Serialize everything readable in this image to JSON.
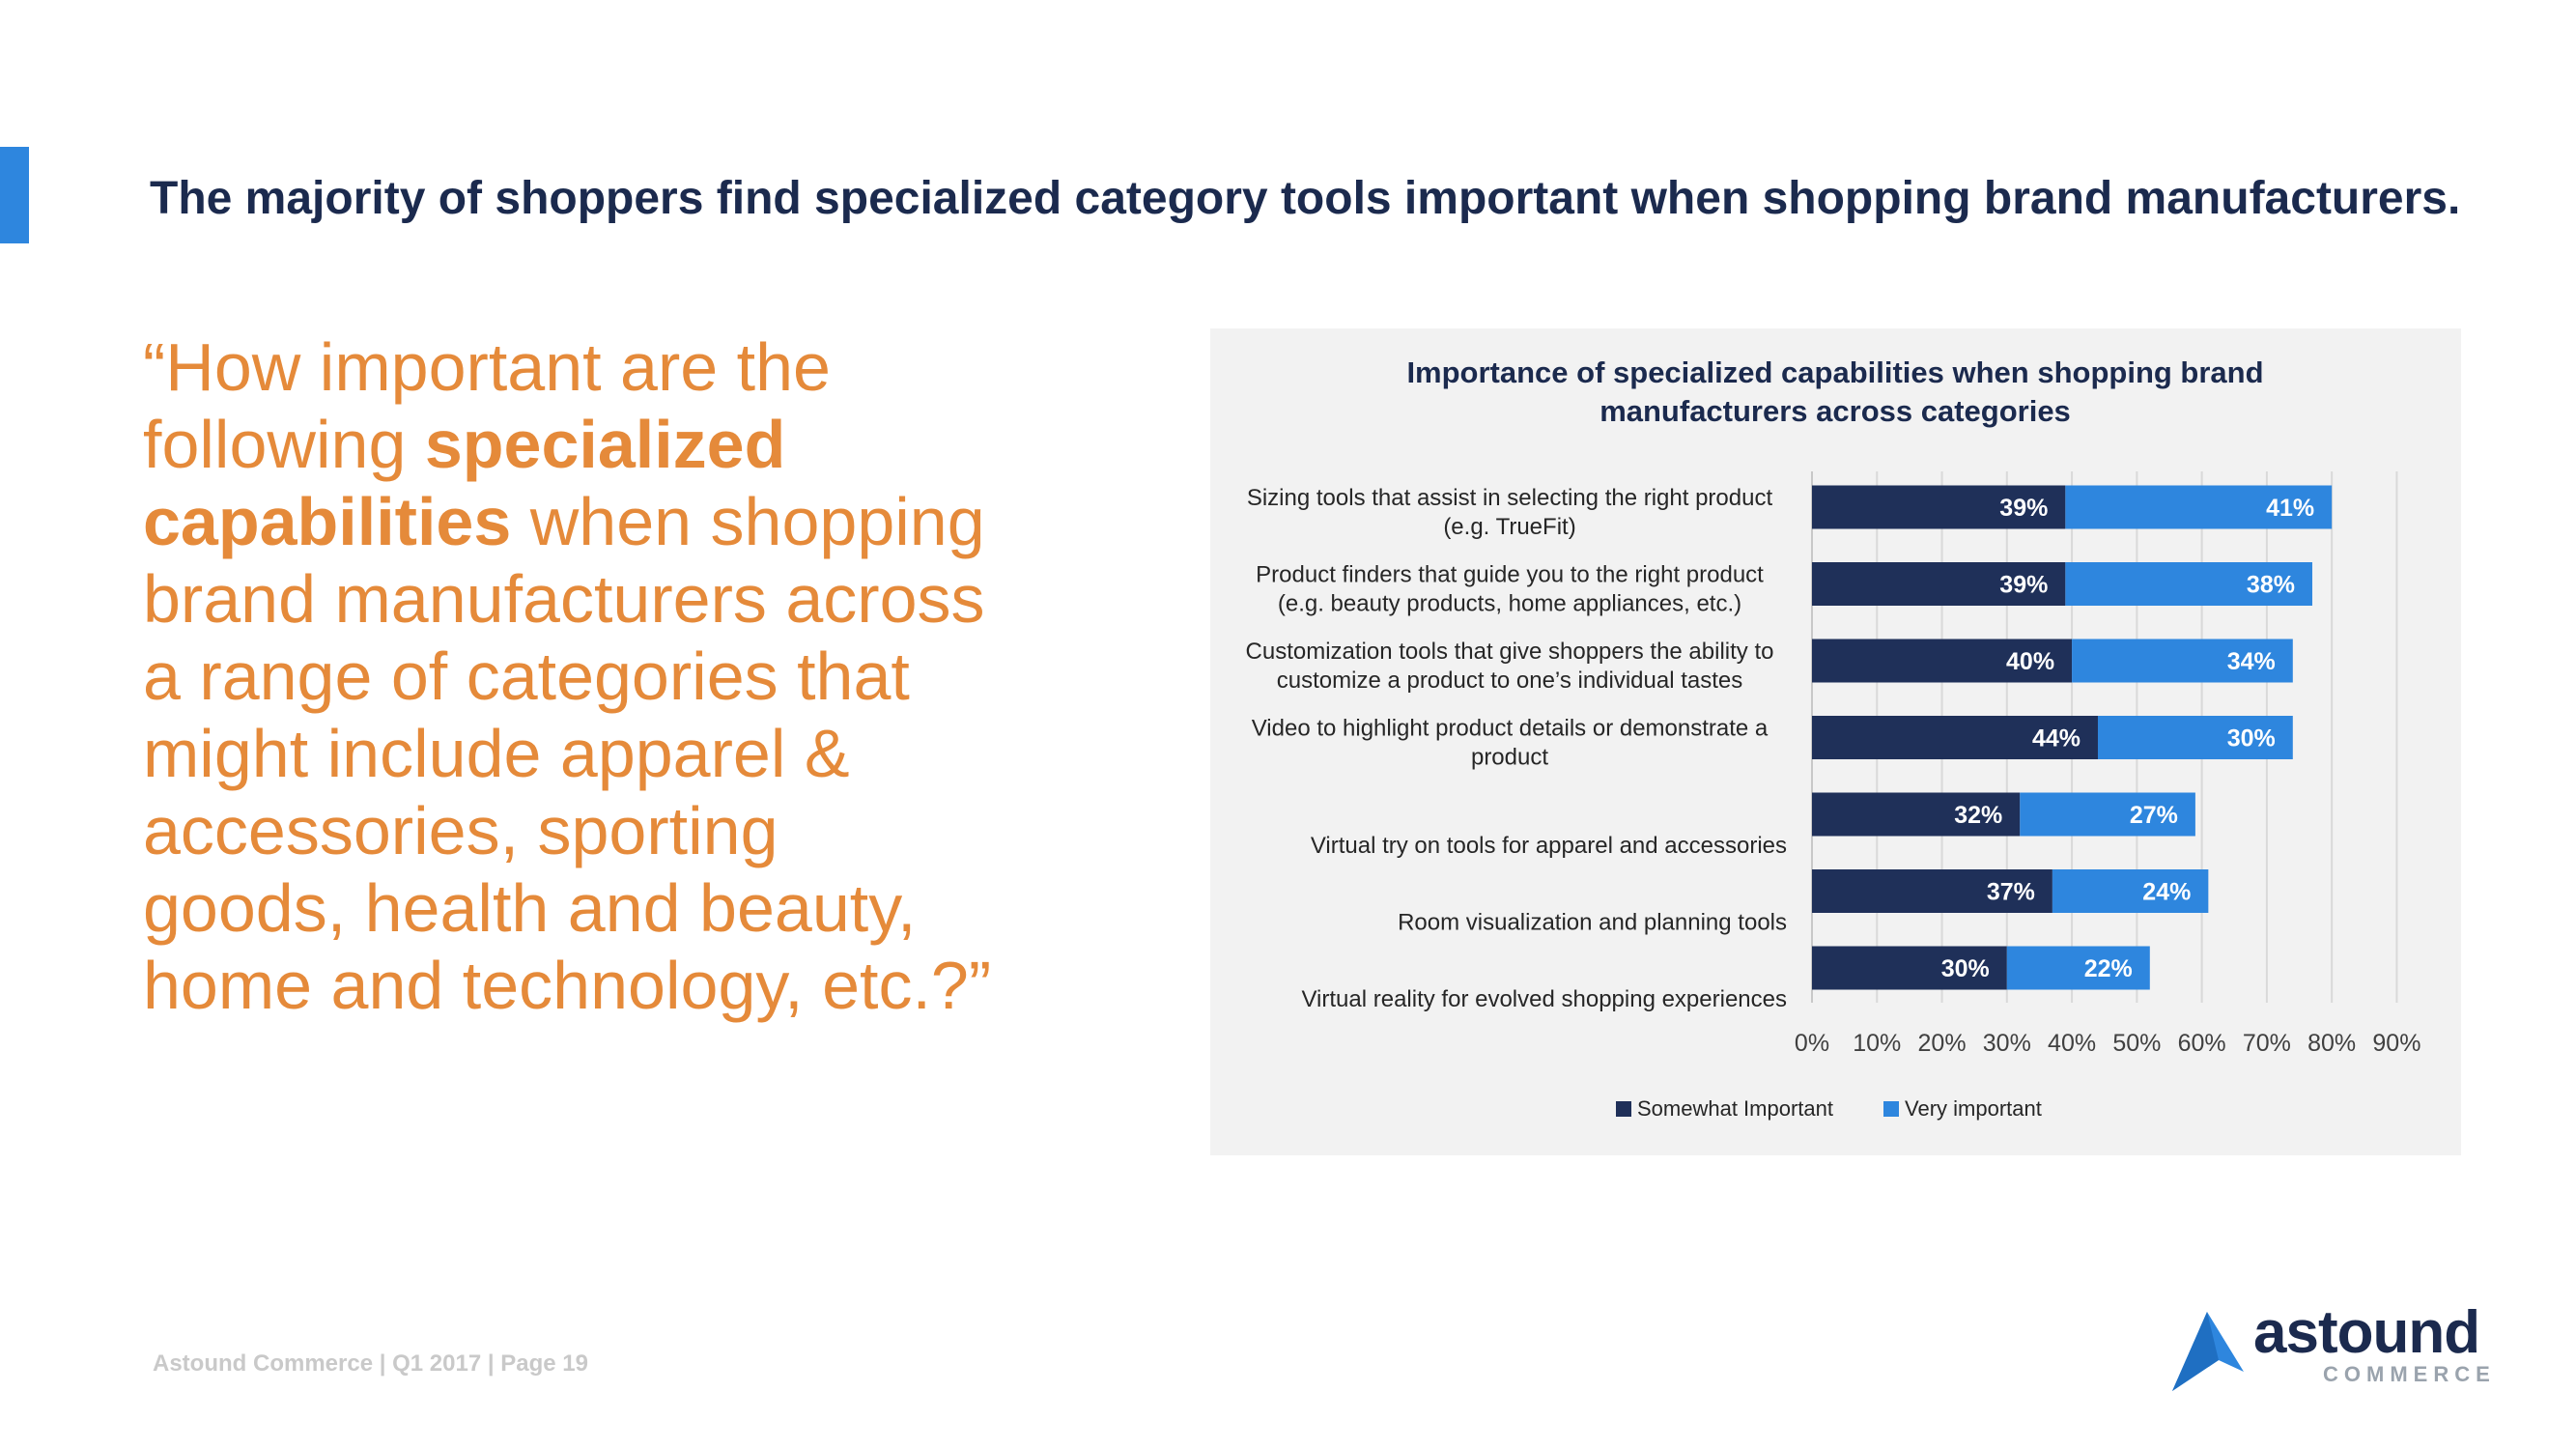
{
  "headline": "The majority of shoppers find specialized category tools important when shopping brand manufacturers.",
  "quote": {
    "part1": "“How important are the following ",
    "bold": "specialized capabilities",
    "part2": " when shopping brand manufacturers across a range of categories that might include apparel & accessories, sporting goods, health and beauty, home and technology, etc.?”"
  },
  "footer": "Astound Commerce | Q1 2017 | Page 19",
  "logo": {
    "word": "astound",
    "sub": "COMMERCE"
  },
  "colors": {
    "dark": "#1f3059",
    "light": "#2e86de",
    "orange": "#e58a3a"
  },
  "chart_data": {
    "type": "bar",
    "orientation": "horizontal",
    "stacked": true,
    "title": "Importance of specialized capabilities when shopping brand manufacturers across categories",
    "title_lines": [
      "Importance of specialized capabilities when shopping brand",
      "manufacturers across categories"
    ],
    "categories": [
      [
        "Sizing tools that assist in selecting the right product",
        "(e.g. TrueFit)"
      ],
      [
        "Product finders that guide you to the right product",
        "(e.g. beauty products, home appliances, etc.)"
      ],
      [
        "Customization tools that give shoppers the ability to",
        "customize a product to one’s individual tastes"
      ],
      [
        "Video to highlight product details or demonstrate a",
        "product"
      ],
      [
        "Virtual try on tools for apparel and accessories"
      ],
      [
        "Room visualization and planning tools"
      ],
      [
        "Virtual reality for evolved shopping experiences"
      ]
    ],
    "series": [
      {
        "name": "Somewhat Important",
        "values": [
          39,
          39,
          40,
          44,
          32,
          37,
          30
        ],
        "labels": [
          "39%",
          "39%",
          "40%",
          "44%",
          "32%",
          "37%",
          "30%"
        ]
      },
      {
        "name": "Very important",
        "values": [
          41,
          38,
          34,
          30,
          27,
          24,
          22
        ],
        "labels": [
          "41%",
          "38%",
          "34%",
          "30%",
          "27%",
          "24%",
          "22%"
        ]
      }
    ],
    "xlim": [
      0,
      90
    ],
    "xticks": [
      "0%",
      "10%",
      "20%",
      "30%",
      "40%",
      "50%",
      "60%",
      "70%",
      "80%",
      "90%"
    ],
    "grid": true,
    "legend": "bottom"
  }
}
